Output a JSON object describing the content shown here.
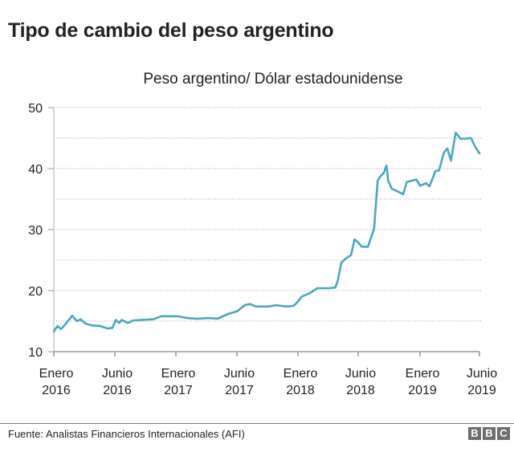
{
  "header": {
    "title": "Tipo de cambio del peso argentino",
    "subtitle": "Peso argentino/ Dólar estadounidense"
  },
  "footer": {
    "source": "Fuente: Analistas Financieros Internacionales (AFI)",
    "logo_letters": [
      "B",
      "B",
      "C"
    ]
  },
  "colors": {
    "line": "#4aa8bc",
    "grid": "#a0a0a0",
    "axis": "#999999",
    "text": "#222222",
    "logo_bg": "#6e6e6e"
  },
  "chart_data": {
    "type": "line",
    "title": "Tipo de cambio del peso argentino",
    "subtitle": "Peso argentino/ Dólar estadounidense",
    "xlabel": "",
    "ylabel": "",
    "ylim": [
      10,
      50
    ],
    "yticks": [
      10,
      20,
      30,
      40,
      50
    ],
    "minor_gridlines": [
      15,
      25,
      35,
      45
    ],
    "grid": true,
    "x_unit": "months since Jan 2016",
    "xticks": [
      {
        "month": 0,
        "label": [
          "Enero",
          "2016"
        ]
      },
      {
        "month": 5,
        "label": [
          "Junio",
          "2016"
        ]
      },
      {
        "month": 12,
        "label": [
          "Enero",
          "2017"
        ]
      },
      {
        "month": 17,
        "label": [
          "Junio",
          "2017"
        ]
      },
      {
        "month": 24,
        "label": [
          "Enero",
          "2018"
        ]
      },
      {
        "month": 29,
        "label": [
          "Junio",
          "2018"
        ]
      },
      {
        "month": 36,
        "label": [
          "Enero",
          "2019"
        ]
      },
      {
        "month": 41,
        "label": [
          "Junio",
          "2019"
        ]
      }
    ],
    "series": [
      {
        "name": "Peso argentino/ Dólar estadounidense",
        "points": [
          [
            0,
            13.3
          ],
          [
            0.3,
            14.2
          ],
          [
            0.6,
            13.7
          ],
          [
            1.0,
            14.6
          ],
          [
            1.5,
            15.9
          ],
          [
            1.9,
            15.0
          ],
          [
            2.2,
            15.3
          ],
          [
            2.6,
            14.6
          ],
          [
            3.1,
            14.3
          ],
          [
            3.8,
            14.2
          ],
          [
            4.4,
            13.8
          ],
          [
            4.8,
            13.9
          ],
          [
            5.1,
            15.2
          ],
          [
            5.5,
            14.7
          ],
          [
            5.8,
            15.2
          ],
          [
            6.5,
            14.7
          ],
          [
            7.1,
            15.1
          ],
          [
            8.0,
            15.2
          ],
          [
            9.4,
            15.3
          ],
          [
            9.8,
            15.5
          ],
          [
            10.3,
            15.8
          ],
          [
            12.1,
            15.8
          ],
          [
            13.0,
            15.5
          ],
          [
            13.7,
            15.4
          ],
          [
            14.7,
            15.5
          ],
          [
            15.4,
            15.4
          ],
          [
            16.3,
            16.2
          ],
          [
            17.0,
            16.6
          ],
          [
            17.9,
            17.6
          ],
          [
            18.5,
            17.8
          ],
          [
            19.2,
            17.4
          ],
          [
            20.6,
            17.4
          ],
          [
            21.5,
            17.6
          ],
          [
            22.7,
            17.4
          ],
          [
            23.5,
            17.5
          ],
          [
            24.0,
            18.2
          ],
          [
            24.3,
            19.0
          ],
          [
            25.0,
            19.6
          ],
          [
            25.6,
            20.4
          ],
          [
            26.6,
            20.4
          ],
          [
            27.1,
            20.5
          ],
          [
            27.3,
            21.6
          ],
          [
            27.6,
            24.6
          ],
          [
            28.0,
            25.3
          ],
          [
            28.4,
            25.8
          ],
          [
            28.7,
            28.4
          ],
          [
            29.0,
            27.9
          ],
          [
            29.4,
            27.2
          ],
          [
            30.1,
            27.2
          ],
          [
            30.5,
            28.9
          ],
          [
            30.8,
            30.1
          ],
          [
            31.2,
            38.0
          ],
          [
            31.5,
            38.7
          ],
          [
            31.9,
            39.3
          ],
          [
            32.2,
            40.5
          ],
          [
            32.4,
            38.0
          ],
          [
            32.8,
            36.7
          ],
          [
            33.4,
            36.3
          ],
          [
            34.1,
            35.8
          ],
          [
            34.5,
            37.8
          ],
          [
            35.0,
            38.0
          ],
          [
            35.6,
            38.2
          ],
          [
            36.0,
            37.2
          ],
          [
            36.5,
            37.6
          ],
          [
            36.8,
            37.1
          ],
          [
            37.3,
            39.6
          ],
          [
            37.6,
            39.7
          ],
          [
            38.0,
            42.6
          ],
          [
            38.3,
            43.3
          ],
          [
            38.6,
            41.3
          ],
          [
            39.0,
            45.9
          ],
          [
            39.4,
            44.9
          ],
          [
            39.8,
            44.9
          ],
          [
            40.3,
            45.0
          ],
          [
            40.6,
            43.7
          ],
          [
            41.0,
            42.5
          ]
        ]
      }
    ]
  }
}
